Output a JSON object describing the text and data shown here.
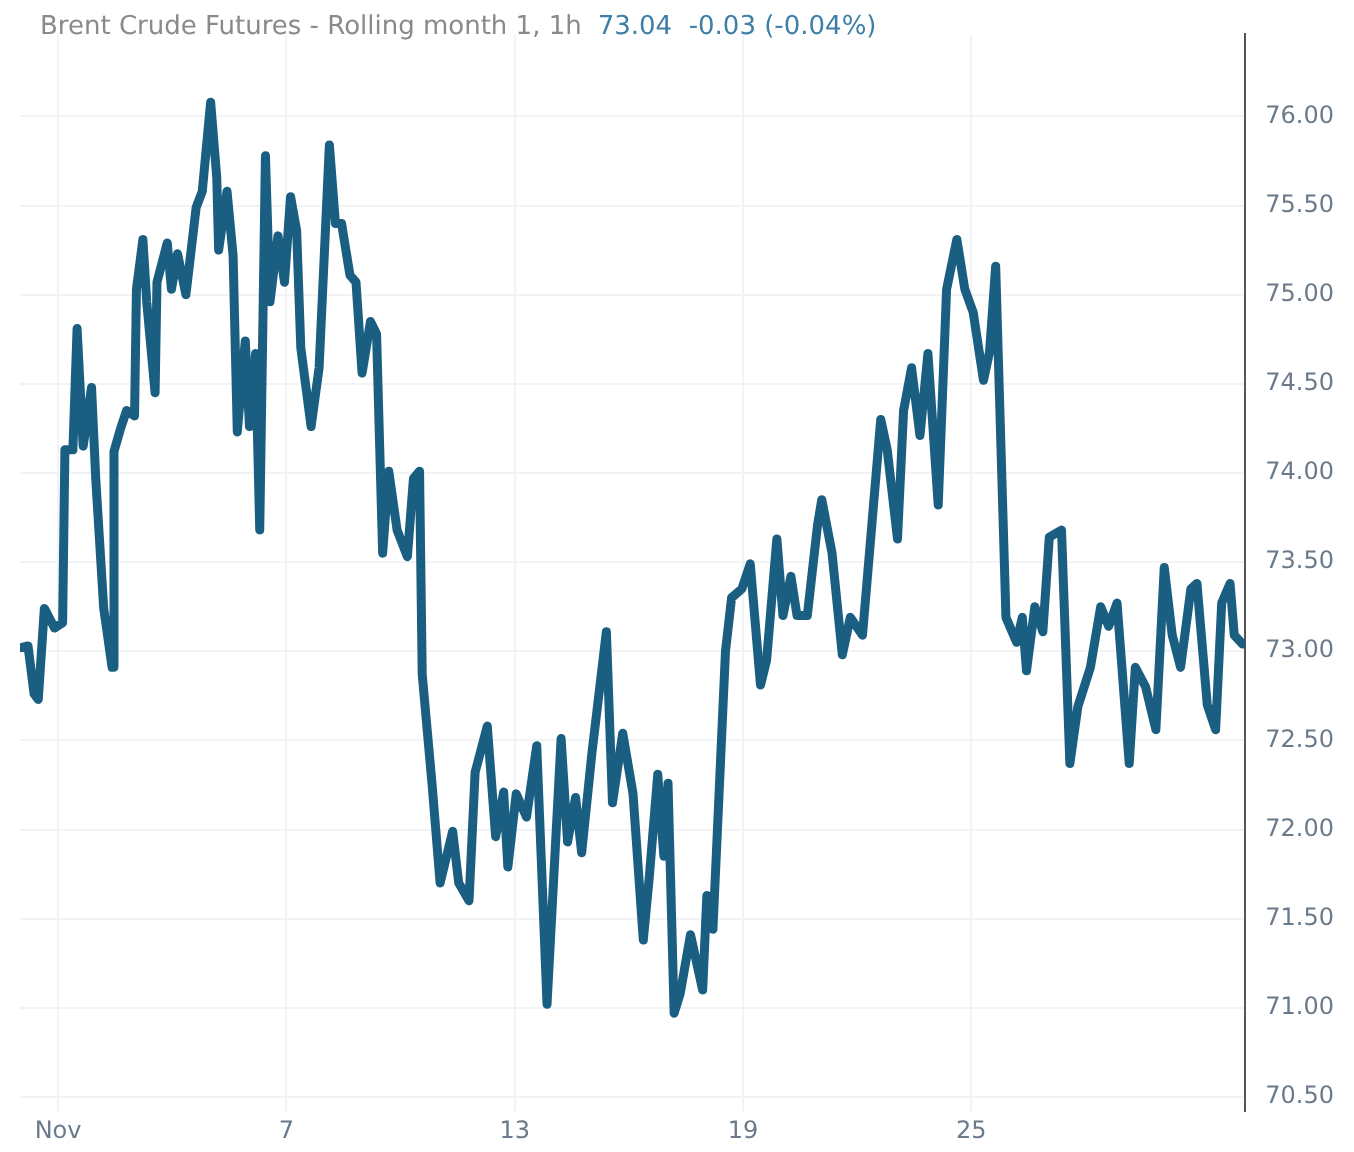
{
  "chart_data": {
    "type": "line",
    "title": "Brent Crude Futures - Rolling month 1, 1h",
    "subtitle": "73.04  -0.03 (-0.04%)",
    "x": [
      0.03,
      0.21,
      0.37,
      0.48,
      0.64,
      0.91,
      1.12,
      1.18,
      1.39,
      1.5,
      1.66,
      1.88,
      1.99,
      2.2,
      2.42,
      2.47,
      2.63,
      2.8,
      3.01,
      3.06,
      3.23,
      3.33,
      3.55,
      3.6,
      3.87,
      3.98,
      4.14,
      4.36,
      4.63,
      4.79,
      5.01,
      5.17,
      5.22,
      5.44,
      5.6,
      5.71,
      5.92,
      6.03,
      6.19,
      6.3,
      6.45,
      6.57,
      6.78,
      6.95,
      7.11,
      7.27,
      7.38,
      7.65,
      7.86,
      8.13,
      8.29,
      8.45,
      8.67,
      8.83,
      8.99,
      9.21,
      9.37,
      9.53,
      9.69,
      9.91,
      10.18,
      10.34,
      10.5,
      10.57,
      10.83,
      11.04,
      11.37,
      11.53,
      11.8,
      11.96,
      12.28,
      12.5,
      12.71,
      12.82,
      13.04,
      13.31,
      13.58,
      13.85,
      14.22,
      14.39,
      14.6,
      14.76,
      15.03,
      15.41,
      15.57,
      15.84,
      16.11,
      16.38,
      16.54,
      16.76,
      16.92,
      17.03,
      17.19,
      17.35,
      17.62,
      17.94,
      18.05,
      18.21,
      18.54,
      18.7,
      18.97,
      19.19,
      19.46,
      19.62,
      19.89,
      20.05,
      20.26,
      20.42,
      20.69,
      20.96,
      21.07,
      21.34,
      21.61,
      21.82,
      22.14,
      22.62,
      22.79,
      23.06,
      23.22,
      23.43,
      23.65,
      23.86,
      24.13,
      24.35,
      24.62,
      24.83,
      25.05,
      25.32,
      25.48,
      25.64,
      25.91,
      26.19,
      26.34,
      26.45,
      26.67,
      26.88,
      27.05,
      27.37,
      27.59,
      27.8,
      28.13,
      28.4,
      28.61,
      28.83,
      29.15,
      29.31,
      29.58,
      29.85,
      30.07,
      30.28,
      30.5,
      30.77,
      30.93,
      31.2,
      31.42,
      31.58,
      31.8,
      31.91,
      32.13
    ],
    "series": [
      {
        "color": "#1a5f82",
        "values": [
          73.02,
          73.03,
          72.76,
          72.73,
          73.24,
          73.13,
          73.16,
          74.13,
          74.13,
          74.81,
          74.15,
          74.48,
          73.97,
          73.24,
          72.91,
          74.12,
          74.24,
          74.35,
          74.32,
          75.03,
          75.31,
          74.96,
          74.45,
          75.07,
          75.29,
          75.03,
          75.23,
          75.0,
          75.49,
          75.58,
          76.08,
          75.66,
          75.25,
          75.58,
          75.22,
          74.23,
          74.74,
          74.26,
          74.67,
          73.68,
          75.78,
          74.96,
          75.33,
          75.07,
          75.55,
          75.36,
          74.7,
          74.26,
          74.59,
          75.84,
          75.4,
          75.4,
          75.11,
          75.07,
          74.56,
          74.85,
          74.78,
          73.55,
          74.01,
          73.68,
          73.53,
          73.97,
          74.01,
          72.87,
          72.25,
          71.7,
          71.99,
          71.7,
          71.6,
          72.32,
          72.58,
          71.96,
          72.21,
          71.79,
          72.2,
          72.07,
          72.47,
          71.02,
          72.51,
          71.93,
          72.18,
          71.87,
          72.43,
          73.11,
          72.15,
          72.54,
          72.2,
          71.38,
          71.74,
          72.31,
          71.85,
          72.26,
          70.97,
          71.08,
          71.41,
          71.1,
          71.63,
          71.44,
          73.0,
          73.3,
          73.35,
          73.49,
          72.81,
          72.95,
          73.63,
          73.2,
          73.42,
          73.2,
          73.2,
          73.71,
          73.85,
          73.55,
          72.98,
          73.19,
          73.09,
          74.3,
          74.13,
          73.63,
          74.35,
          74.59,
          74.21,
          74.67,
          73.82,
          75.03,
          75.31,
          75.03,
          74.9,
          74.52,
          74.68,
          75.16,
          73.19,
          73.05,
          73.19,
          72.89,
          73.25,
          73.11,
          73.64,
          73.68,
          72.37,
          72.69,
          72.91,
          73.25,
          73.14,
          73.27,
          72.37,
          72.91,
          72.8,
          72.56,
          73.47,
          73.09,
          72.91,
          73.35,
          73.38,
          72.7,
          72.56,
          73.27,
          73.38,
          73.09,
          73.04
        ]
      }
    ],
    "xlim": [
      0,
      32.2
    ],
    "ylim": [
      70.42,
      76.46
    ],
    "xticks": [
      {
        "value": 1,
        "label": "Nov"
      },
      7,
      13,
      19,
      25
    ],
    "yticks": [
      {
        "value": 70.5,
        "label": "70.50"
      },
      {
        "value": 71,
        "label": "71.00"
      },
      {
        "value": 71.5,
        "label": "71.50"
      },
      {
        "value": 72,
        "label": "72.00"
      },
      {
        "value": 72.5,
        "label": "72.50"
      },
      {
        "value": 73,
        "label": "73.00"
      },
      {
        "value": 73.5,
        "label": "73.50"
      },
      {
        "value": 74,
        "label": "74.00"
      },
      {
        "value": 74.5,
        "label": "74.50"
      },
      {
        "value": 75,
        "label": "75.00"
      },
      {
        "value": 75.5,
        "label": "75.50"
      },
      {
        "value": 76,
        "label": "76.00"
      }
    ],
    "grid": true,
    "legend": false,
    "marker": "none",
    "line_style": "solid"
  }
}
